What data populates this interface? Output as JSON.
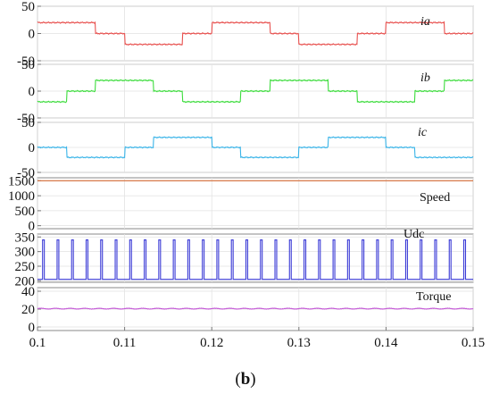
{
  "caption": {
    "open": "(",
    "label": "b",
    "close": ")"
  },
  "x_axis": {
    "range": [
      0.1,
      0.15
    ],
    "ticks": [
      "0.1",
      "0.11",
      "0.12",
      "0.13",
      "0.14",
      "0.15"
    ]
  },
  "chart_data": [
    {
      "type": "line",
      "name": "ia",
      "label": "ia",
      "italic_label": true,
      "color": "#e8514f",
      "ylim": [
        -50,
        50
      ],
      "yticks": [
        "50",
        "0",
        "-50"
      ],
      "waveform": {
        "shape": "six-step",
        "amplitude": 20,
        "period": 0.02,
        "phase": 0,
        "t0": 0.1,
        "t1": 0.15
      }
    },
    {
      "type": "line",
      "name": "ib",
      "label": "ib",
      "italic_label": true,
      "color": "#3ddc3d",
      "ylim": [
        -50,
        50
      ],
      "yticks": [
        "50",
        "0",
        "-50"
      ],
      "waveform": {
        "shape": "six-step",
        "amplitude": 20,
        "period": 0.02,
        "phase": -120,
        "t0": 0.1,
        "t1": 0.15
      }
    },
    {
      "type": "line",
      "name": "ic",
      "label": "ic",
      "italic_label": true,
      "color": "#3ab4e8",
      "ylim": [
        -50,
        50
      ],
      "yticks": [
        "50",
        "0",
        "-50"
      ],
      "waveform": {
        "shape": "six-step",
        "amplitude": 20,
        "period": 0.02,
        "phase": 120,
        "t0": 0.1,
        "t1": 0.15
      }
    },
    {
      "type": "line",
      "name": "Speed",
      "label": "Speed",
      "italic_label": false,
      "color": "#d46a34",
      "ylim": [
        -100,
        1600
      ],
      "yticks": [
        "1500",
        "1000",
        "500",
        "0"
      ],
      "waveform": {
        "shape": "constant",
        "value": 1500,
        "t0": 0.1,
        "t1": 0.15
      }
    },
    {
      "type": "line",
      "name": "Udc",
      "label": "Udc",
      "italic_label": false,
      "color": "#3a3ad6",
      "ylim": [
        195,
        360
      ],
      "yticks": [
        "350",
        "300",
        "250",
        "200"
      ],
      "waveform": {
        "shape": "pulse-train",
        "base": 205,
        "peak": 340,
        "period": 0.001667,
        "duty": 0.12,
        "t0": 0.1,
        "t1": 0.15
      }
    },
    {
      "type": "line",
      "name": "Torque",
      "label": "Torque",
      "italic_label": false,
      "color": "#c45ad6",
      "ylim": [
        -4,
        44
      ],
      "yticks": [
        "40",
        "20",
        "0"
      ],
      "waveform": {
        "shape": "ripple",
        "value": 20.5,
        "ripple": 0.4,
        "period": 0.001667,
        "t0": 0.1,
        "t1": 0.15
      }
    }
  ]
}
